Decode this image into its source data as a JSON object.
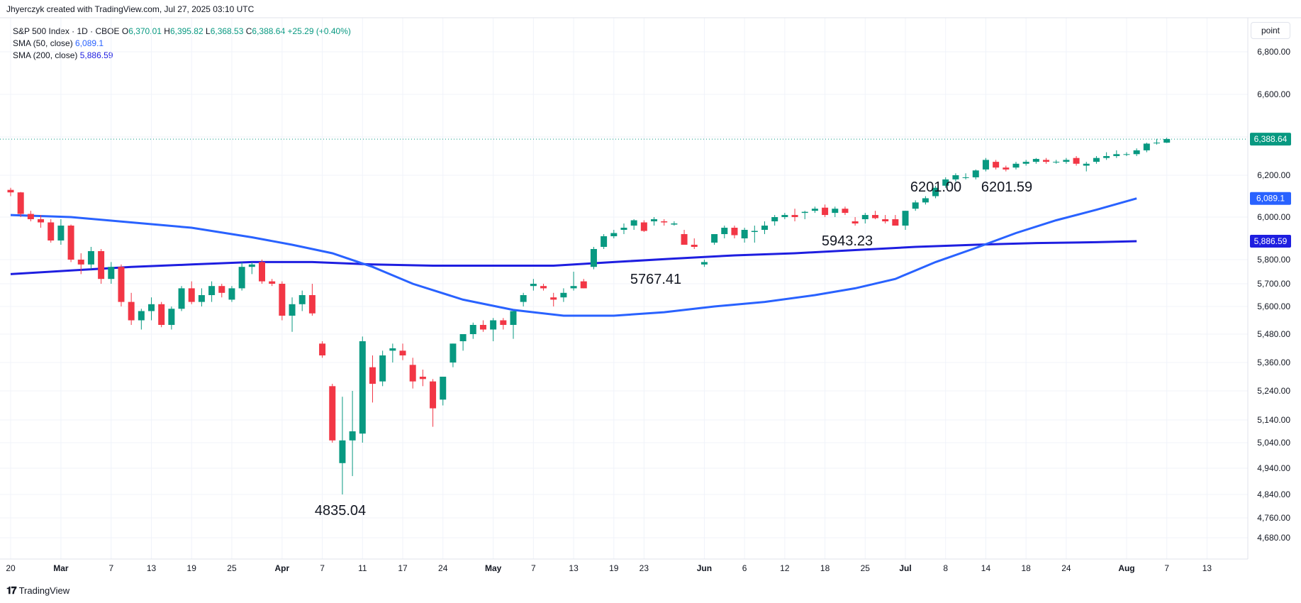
{
  "header": {
    "attribution": "Jhyerczyk created with TradingView.com, Jul 27, 2025 03:10 UTC"
  },
  "legend": {
    "symbol": "S&P 500 Index · 1D · CBOE",
    "open_label": "O",
    "open": "6,370.01",
    "high_label": "H",
    "high": "6,395.82",
    "low_label": "L",
    "low": "6,368.53",
    "close_label": "C",
    "close": "6,388.64",
    "change": "+25.29 (+0.40%)",
    "sma50_label": "SMA (50, close)",
    "sma50_value": "6,089.1",
    "sma200_label": "SMA (200, close)",
    "sma200_value": "5,886.59"
  },
  "scale_button": "point",
  "footer": {
    "brand": "TradingView",
    "logo": "𝟏𝟕"
  },
  "colors": {
    "up": "#089981",
    "down": "#f23645",
    "sma50": "#2962ff",
    "sma200": "#1e1ee0",
    "price_line": "#089981"
  },
  "chart_data": {
    "type": "candlestick",
    "y_ticks": [
      6800,
      6600,
      6400,
      6200,
      6000,
      5800,
      5700,
      5600,
      5480,
      5360,
      5240,
      5140,
      5040,
      4940,
      4840,
      4760,
      4680
    ],
    "y_tick_labels": [
      "6,800.00",
      "6,600.00",
      "6,400.00",
      "6,200.00",
      "6,000.00",
      "5,800.00",
      "5,700.00",
      "5,600.00",
      "5,480.00",
      "5,360.00",
      "5,240.00",
      "5,140.00",
      "5,040.00",
      "4,940.00",
      "4,840.00",
      "4,760.00",
      "4,680.00"
    ],
    "x_ticks": [
      {
        "i": 0,
        "label": "20"
      },
      {
        "i": 5,
        "label": "Mar"
      },
      {
        "i": 10,
        "label": "7"
      },
      {
        "i": 14,
        "label": "13"
      },
      {
        "i": 18,
        "label": "19"
      },
      {
        "i": 22,
        "label": "25"
      },
      {
        "i": 27,
        "label": "Apr"
      },
      {
        "i": 31,
        "label": "7"
      },
      {
        "i": 35,
        "label": "11"
      },
      {
        "i": 39,
        "label": "17"
      },
      {
        "i": 43,
        "label": "24"
      },
      {
        "i": 48,
        "label": "May"
      },
      {
        "i": 52,
        "label": "7"
      },
      {
        "i": 56,
        "label": "13"
      },
      {
        "i": 60,
        "label": "19"
      },
      {
        "i": 63,
        "label": "23"
      },
      {
        "i": 69,
        "label": "Jun"
      },
      {
        "i": 73,
        "label": "6"
      },
      {
        "i": 77,
        "label": "12"
      },
      {
        "i": 81,
        "label": "18"
      },
      {
        "i": 85,
        "label": "25"
      },
      {
        "i": 89,
        "label": "Jul"
      },
      {
        "i": 93,
        "label": "8"
      },
      {
        "i": 97,
        "label": "14"
      },
      {
        "i": 101,
        "label": "18"
      },
      {
        "i": 105,
        "label": "24"
      },
      {
        "i": 111,
        "label": "Aug"
      },
      {
        "i": 115,
        "label": "7"
      },
      {
        "i": 119,
        "label": "13"
      }
    ],
    "candles": [
      [
        6130,
        6140,
        6100,
        6118
      ],
      [
        6118,
        6120,
        6000,
        6015
      ],
      [
        6015,
        6030,
        5980,
        5990
      ],
      [
        5990,
        6010,
        5950,
        5975
      ],
      [
        5975,
        5990,
        5880,
        5890
      ],
      [
        5890,
        5990,
        5870,
        5960
      ],
      [
        5960,
        5965,
        5790,
        5800
      ],
      [
        5800,
        5830,
        5740,
        5780
      ],
      [
        5780,
        5860,
        5760,
        5840
      ],
      [
        5840,
        5850,
        5700,
        5720
      ],
      [
        5720,
        5790,
        5700,
        5770
      ],
      [
        5770,
        5780,
        5600,
        5620
      ],
      [
        5620,
        5660,
        5520,
        5540
      ],
      [
        5540,
        5590,
        5500,
        5580
      ],
      [
        5580,
        5640,
        5540,
        5610
      ],
      [
        5610,
        5620,
        5510,
        5520
      ],
      [
        5520,
        5600,
        5500,
        5590
      ],
      [
        5590,
        5690,
        5580,
        5680
      ],
      [
        5680,
        5710,
        5610,
        5620
      ],
      [
        5620,
        5680,
        5600,
        5650
      ],
      [
        5650,
        5710,
        5620,
        5690
      ],
      [
        5690,
        5700,
        5640,
        5660
      ],
      [
        5630,
        5690,
        5620,
        5680
      ],
      [
        5680,
        5790,
        5670,
        5770
      ],
      [
        5770,
        5790,
        5740,
        5780
      ],
      [
        5790,
        5800,
        5700,
        5710
      ],
      [
        5710,
        5720,
        5690,
        5700
      ],
      [
        5700,
        5710,
        5540,
        5560
      ],
      [
        5560,
        5640,
        5490,
        5610
      ],
      [
        5610,
        5670,
        5580,
        5650
      ],
      [
        5650,
        5700,
        5560,
        5570
      ],
      [
        5440,
        5450,
        5380,
        5390
      ],
      [
        5260,
        5270,
        5040,
        5050
      ],
      [
        4960,
        5220,
        4840,
        5050
      ],
      [
        5050,
        5240,
        4910,
        5090
      ],
      [
        5080,
        5470,
        5040,
        5450
      ],
      [
        5340,
        5390,
        5200,
        5270
      ],
      [
        5280,
        5410,
        5260,
        5390
      ],
      [
        5410,
        5440,
        5360,
        5420
      ],
      [
        5410,
        5440,
        5370,
        5390
      ],
      [
        5350,
        5380,
        5250,
        5280
      ],
      [
        5300,
        5330,
        5260,
        5290
      ],
      [
        5280,
        5290,
        5110,
        5180
      ],
      [
        5210,
        5300,
        5190,
        5300
      ],
      [
        5360,
        5440,
        5340,
        5440
      ],
      [
        5450,
        5480,
        5410,
        5480
      ],
      [
        5480,
        5530,
        5460,
        5520
      ],
      [
        5520,
        5540,
        5490,
        5500
      ],
      [
        5500,
        5550,
        5450,
        5540
      ],
      [
        5540,
        5550,
        5500,
        5520
      ],
      [
        5520,
        5580,
        5460,
        5580
      ],
      [
        5620,
        5660,
        5600,
        5650
      ],
      [
        5690,
        5720,
        5670,
        5700
      ],
      [
        5690,
        5700,
        5670,
        5680
      ],
      [
        5640,
        5660,
        5600,
        5630
      ],
      [
        5640,
        5680,
        5620,
        5660
      ],
      [
        5680,
        5750,
        5670,
        5690
      ],
      [
        5710,
        5720,
        5680,
        5680
      ],
      [
        5770,
        5860,
        5760,
        5850
      ],
      [
        5860,
        5920,
        5850,
        5910
      ],
      [
        5910,
        5940,
        5900,
        5925
      ],
      [
        5940,
        5970,
        5920,
        5950
      ],
      [
        5960,
        5990,
        5940,
        5985
      ],
      [
        5975,
        5985,
        5930,
        5935
      ],
      [
        5980,
        6000,
        5960,
        5990
      ],
      [
        5980,
        5990,
        5960,
        5975
      ],
      [
        5965,
        5980,
        5960,
        5970
      ],
      [
        5920,
        5940,
        5870,
        5870
      ],
      [
        5870,
        5900,
        5850,
        5860
      ],
      [
        5780,
        5800,
        5770,
        5790
      ],
      [
        5880,
        5920,
        5870,
        5920
      ],
      [
        5920,
        5960,
        5900,
        5950
      ],
      [
        5950,
        5960,
        5900,
        5915
      ],
      [
        5900,
        5950,
        5880,
        5940
      ],
      [
        5930,
        5960,
        5880,
        5935
      ],
      [
        5940,
        5980,
        5920,
        5960
      ],
      [
        5980,
        6010,
        5960,
        6000
      ],
      [
        6000,
        6020,
        5990,
        6010
      ],
      [
        6010,
        6040,
        5980,
        6000
      ],
      [
        6020,
        6030,
        5990,
        6025
      ],
      [
        6030,
        6050,
        6020,
        6040
      ],
      [
        6045,
        6060,
        6000,
        6010
      ],
      [
        6020,
        6050,
        6000,
        6040
      ],
      [
        6040,
        6050,
        6010,
        6020
      ],
      [
        5980,
        6000,
        5960,
        5970
      ],
      [
        5990,
        6020,
        5970,
        6010
      ],
      [
        6010,
        6030,
        5990,
        5995
      ],
      [
        5990,
        6010,
        5970,
        5980
      ],
      [
        5990,
        6010,
        5960,
        5960
      ],
      [
        5960,
        6030,
        5940,
        6030
      ],
      [
        6040,
        6080,
        6030,
        6070
      ],
      [
        6070,
        6100,
        6060,
        6090
      ],
      [
        6100,
        6150,
        6090,
        6140
      ],
      [
        6150,
        6190,
        6140,
        6180
      ],
      [
        6180,
        6210,
        6170,
        6200
      ],
      [
        6190,
        6210,
        6180,
        6190
      ],
      [
        6190,
        6230,
        6180,
        6225
      ],
      [
        6230,
        6290,
        6220,
        6280
      ],
      [
        6270,
        6280,
        6230,
        6240
      ],
      [
        6240,
        6250,
        6220,
        6230
      ],
      [
        6240,
        6270,
        6230,
        6260
      ],
      [
        6260,
        6280,
        6250,
        6270
      ],
      [
        6270,
        6290,
        6260,
        6285
      ],
      [
        6280,
        6290,
        6260,
        6270
      ],
      [
        6270,
        6280,
        6260,
        6270
      ],
      [
        6270,
        6290,
        6260,
        6280
      ],
      [
        6290,
        6300,
        6250,
        6260
      ],
      [
        6250,
        6270,
        6220,
        6260
      ],
      [
        6270,
        6300,
        6260,
        6290
      ],
      [
        6290,
        6320,
        6280,
        6300
      ],
      [
        6300,
        6330,
        6290,
        6310
      ],
      [
        6310,
        6320,
        6300,
        6310
      ],
      [
        6310,
        6340,
        6300,
        6330
      ],
      [
        6330,
        6370,
        6320,
        6365
      ],
      [
        6370,
        6390,
        6360,
        6370
      ],
      [
        6370,
        6396,
        6368,
        6389
      ]
    ],
    "sma50": [
      [
        0,
        6010
      ],
      [
        6,
        6000
      ],
      [
        12,
        5975
      ],
      [
        18,
        5950
      ],
      [
        24,
        5905
      ],
      [
        28,
        5870
      ],
      [
        32,
        5830
      ],
      [
        36,
        5770
      ],
      [
        40,
        5700
      ],
      [
        45,
        5630
      ],
      [
        50,
        5585
      ],
      [
        55,
        5560
      ],
      [
        60,
        5560
      ],
      [
        65,
        5575
      ],
      [
        70,
        5600
      ],
      [
        75,
        5620
      ],
      [
        80,
        5650
      ],
      [
        84,
        5680
      ],
      [
        88,
        5720
      ],
      [
        92,
        5790
      ],
      [
        96,
        5855
      ],
      [
        100,
        5925
      ],
      [
        104,
        5985
      ],
      [
        108,
        6035
      ],
      [
        112,
        6089
      ]
    ],
    "sma200": [
      [
        0,
        5740
      ],
      [
        6,
        5755
      ],
      [
        12,
        5770
      ],
      [
        18,
        5780
      ],
      [
        24,
        5790
      ],
      [
        30,
        5790
      ],
      [
        36,
        5780
      ],
      [
        42,
        5775
      ],
      [
        48,
        5775
      ],
      [
        54,
        5775
      ],
      [
        60,
        5790
      ],
      [
        66,
        5805
      ],
      [
        72,
        5820
      ],
      [
        78,
        5830
      ],
      [
        84,
        5845
      ],
      [
        90,
        5860
      ],
      [
        96,
        5870
      ],
      [
        102,
        5878
      ],
      [
        108,
        5882
      ],
      [
        112,
        5886.59
      ]
    ],
    "annotations": [
      {
        "label": "6201.00",
        "i": 96,
        "price": 6201.0
      },
      {
        "label": "6201.59",
        "i": 104,
        "price": 6201.59
      },
      {
        "label": "5943.23",
        "i": 85,
        "price": 5943.23
      },
      {
        "label": "5767.41",
        "i": 70,
        "price": 5767.41
      },
      {
        "label": "4835.04",
        "i": 33,
        "price": 4835.04
      }
    ],
    "last_price_label": "6,388.64",
    "sma50_label": "6,089.1",
    "sma200_label": "5,886.59",
    "last_price": 6388.64
  }
}
